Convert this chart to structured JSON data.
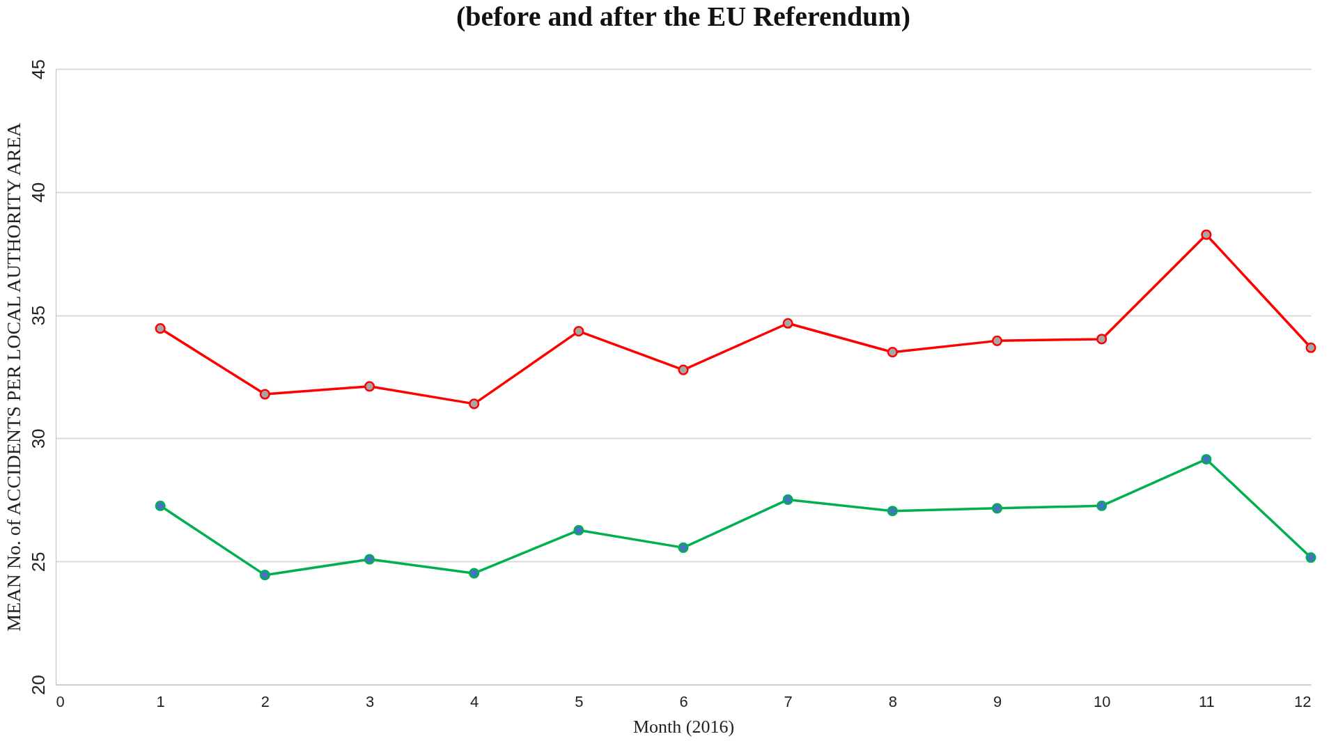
{
  "chart_data": {
    "type": "line",
    "title": "(before and after the EU Referendum)",
    "xlabel": "Month (2016)",
    "ylabel": "MEAN No. of ACCIDENTS PER LOCAL AUTHORITY AREA",
    "x": [
      1,
      2,
      3,
      4,
      5,
      6,
      7,
      8,
      9,
      10,
      11,
      12
    ],
    "series": [
      {
        "color": "#ff0000",
        "values": [
          34.46,
          31.79,
          32.11,
          31.4,
          34.35,
          32.78,
          34.67,
          33.5,
          33.96,
          34.03,
          38.27,
          33.68
        ]
      },
      {
        "color": "#00b050",
        "values": [
          27.26,
          24.45,
          25.09,
          24.52,
          26.27,
          25.56,
          27.51,
          27.05,
          27.16,
          27.26,
          29.15,
          25.16
        ]
      }
    ],
    "xlim": [
      0,
      12
    ],
    "xticks": [
      0,
      1,
      2,
      3,
      4,
      5,
      6,
      7,
      8,
      9,
      10,
      11,
      12
    ],
    "ylim": [
      20,
      45
    ],
    "yticks": [
      20,
      25,
      30,
      35,
      40,
      45
    ],
    "grid": "y",
    "marker": "circle",
    "line_style": "solid"
  }
}
